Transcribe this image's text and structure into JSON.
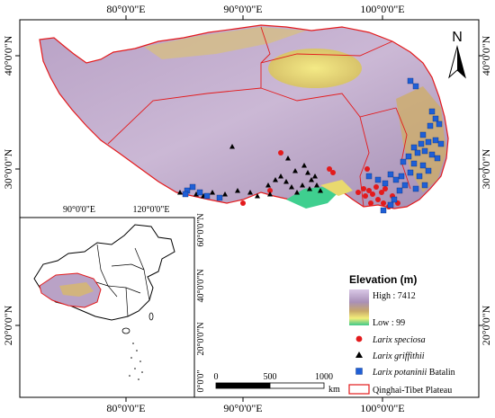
{
  "top_ticks": [
    "80°0'0\"E",
    "90°0'0\"E",
    "100°0'0\"E"
  ],
  "bottom_ticks": [
    "80°0'0\"E",
    "90°0'0\"E",
    "100°0'0\"E"
  ],
  "left_ticks": [
    "40°0'0\"N",
    "30°0'0\"N",
    "20°0'0\"N"
  ],
  "right_ticks": [
    "40°0'0\"N",
    "30°0'0\"N",
    "20°0'0\"N"
  ],
  "inset": {
    "top_ticks": [
      "90°0'0\"E",
      "120°0'0\"E"
    ],
    "right_ticks": [
      "60°0'0\"N",
      "40°0'0\"N",
      "20°0'0\"N",
      "0°0'0\""
    ]
  },
  "north_label": "N",
  "legend": {
    "title": "Elevation (m)",
    "high": "High : 7412",
    "low": "Low : 99",
    "species": [
      {
        "name": "Larix speciosa",
        "suffix": "",
        "symbol": "circle",
        "color": "#e31a1c"
      },
      {
        "name": "Larix griffithii",
        "suffix": "",
        "symbol": "triangle",
        "color": "#000000"
      },
      {
        "name": "Larix potaninii",
        "suffix": " Batalin",
        "symbol": "square",
        "color": "#1f5fd6"
      }
    ],
    "boundary": "Qinghai-Tibet Plateau",
    "boundary_color": "#e31a1c"
  },
  "scalebar": {
    "labels": [
      "0",
      "500",
      "1000"
    ],
    "unit": "km"
  }
}
